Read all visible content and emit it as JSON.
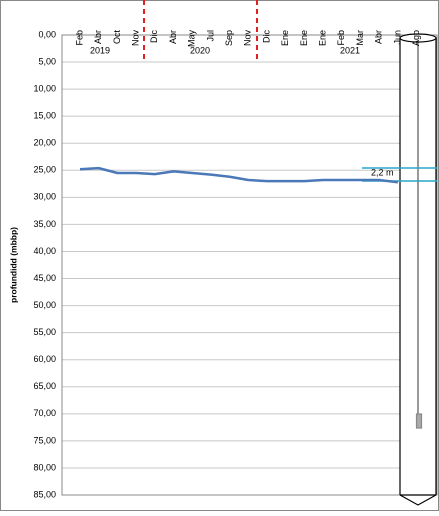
{
  "chart_data": {
    "type": "line",
    "y_label": "profundidd (mbbp)",
    "categories": [
      "Feb",
      "Abr",
      "Oct",
      "Nov",
      "Dic",
      "Abr",
      "May",
      "Jul",
      "Sep",
      "Nov",
      "Dic",
      "Ene",
      "Ene",
      "Ene",
      "Feb",
      "Mar",
      "Abr",
      "Jun",
      "Ago"
    ],
    "series": [
      {
        "name": "profundidad",
        "color": "#4a78b8",
        "values": [
          24.8,
          24.6,
          25.5,
          25.5,
          25.7,
          25.2,
          25.5,
          25.8,
          26.2,
          26.8,
          27.0,
          27.0,
          27.0,
          26.8,
          26.8,
          26.8,
          26.8,
          27.2,
          null
        ]
      }
    ],
    "years": [
      "2019",
      "2020",
      "2021"
    ],
    "annotation": "2,2 m",
    "ylim": [
      0,
      85
    ],
    "y_inverted": true,
    "yticks": [
      {
        "value": 0,
        "label": "0,00"
      },
      {
        "value": 5,
        "label": "5,00"
      },
      {
        "value": 10,
        "label": "10,00"
      },
      {
        "value": 15,
        "label": "15,00"
      },
      {
        "value": 20,
        "label": "20,00"
      },
      {
        "value": 25,
        "label": "25,00"
      },
      {
        "value": 30,
        "label": "30,00"
      },
      {
        "value": 35,
        "label": "35,00"
      },
      {
        "value": 40,
        "label": "40,00"
      },
      {
        "value": 45,
        "label": "45,00"
      },
      {
        "value": 50,
        "label": "50,00"
      },
      {
        "value": 55,
        "label": "55,00"
      },
      {
        "value": 60,
        "label": "60,00"
      },
      {
        "value": 65,
        "label": "65,00"
      },
      {
        "value": 70,
        "label": "70,00"
      },
      {
        "value": 75,
        "label": "75,00"
      },
      {
        "value": 80,
        "label": "80,00"
      },
      {
        "value": 85,
        "label": "85,00"
      }
    ],
    "grid": true
  }
}
